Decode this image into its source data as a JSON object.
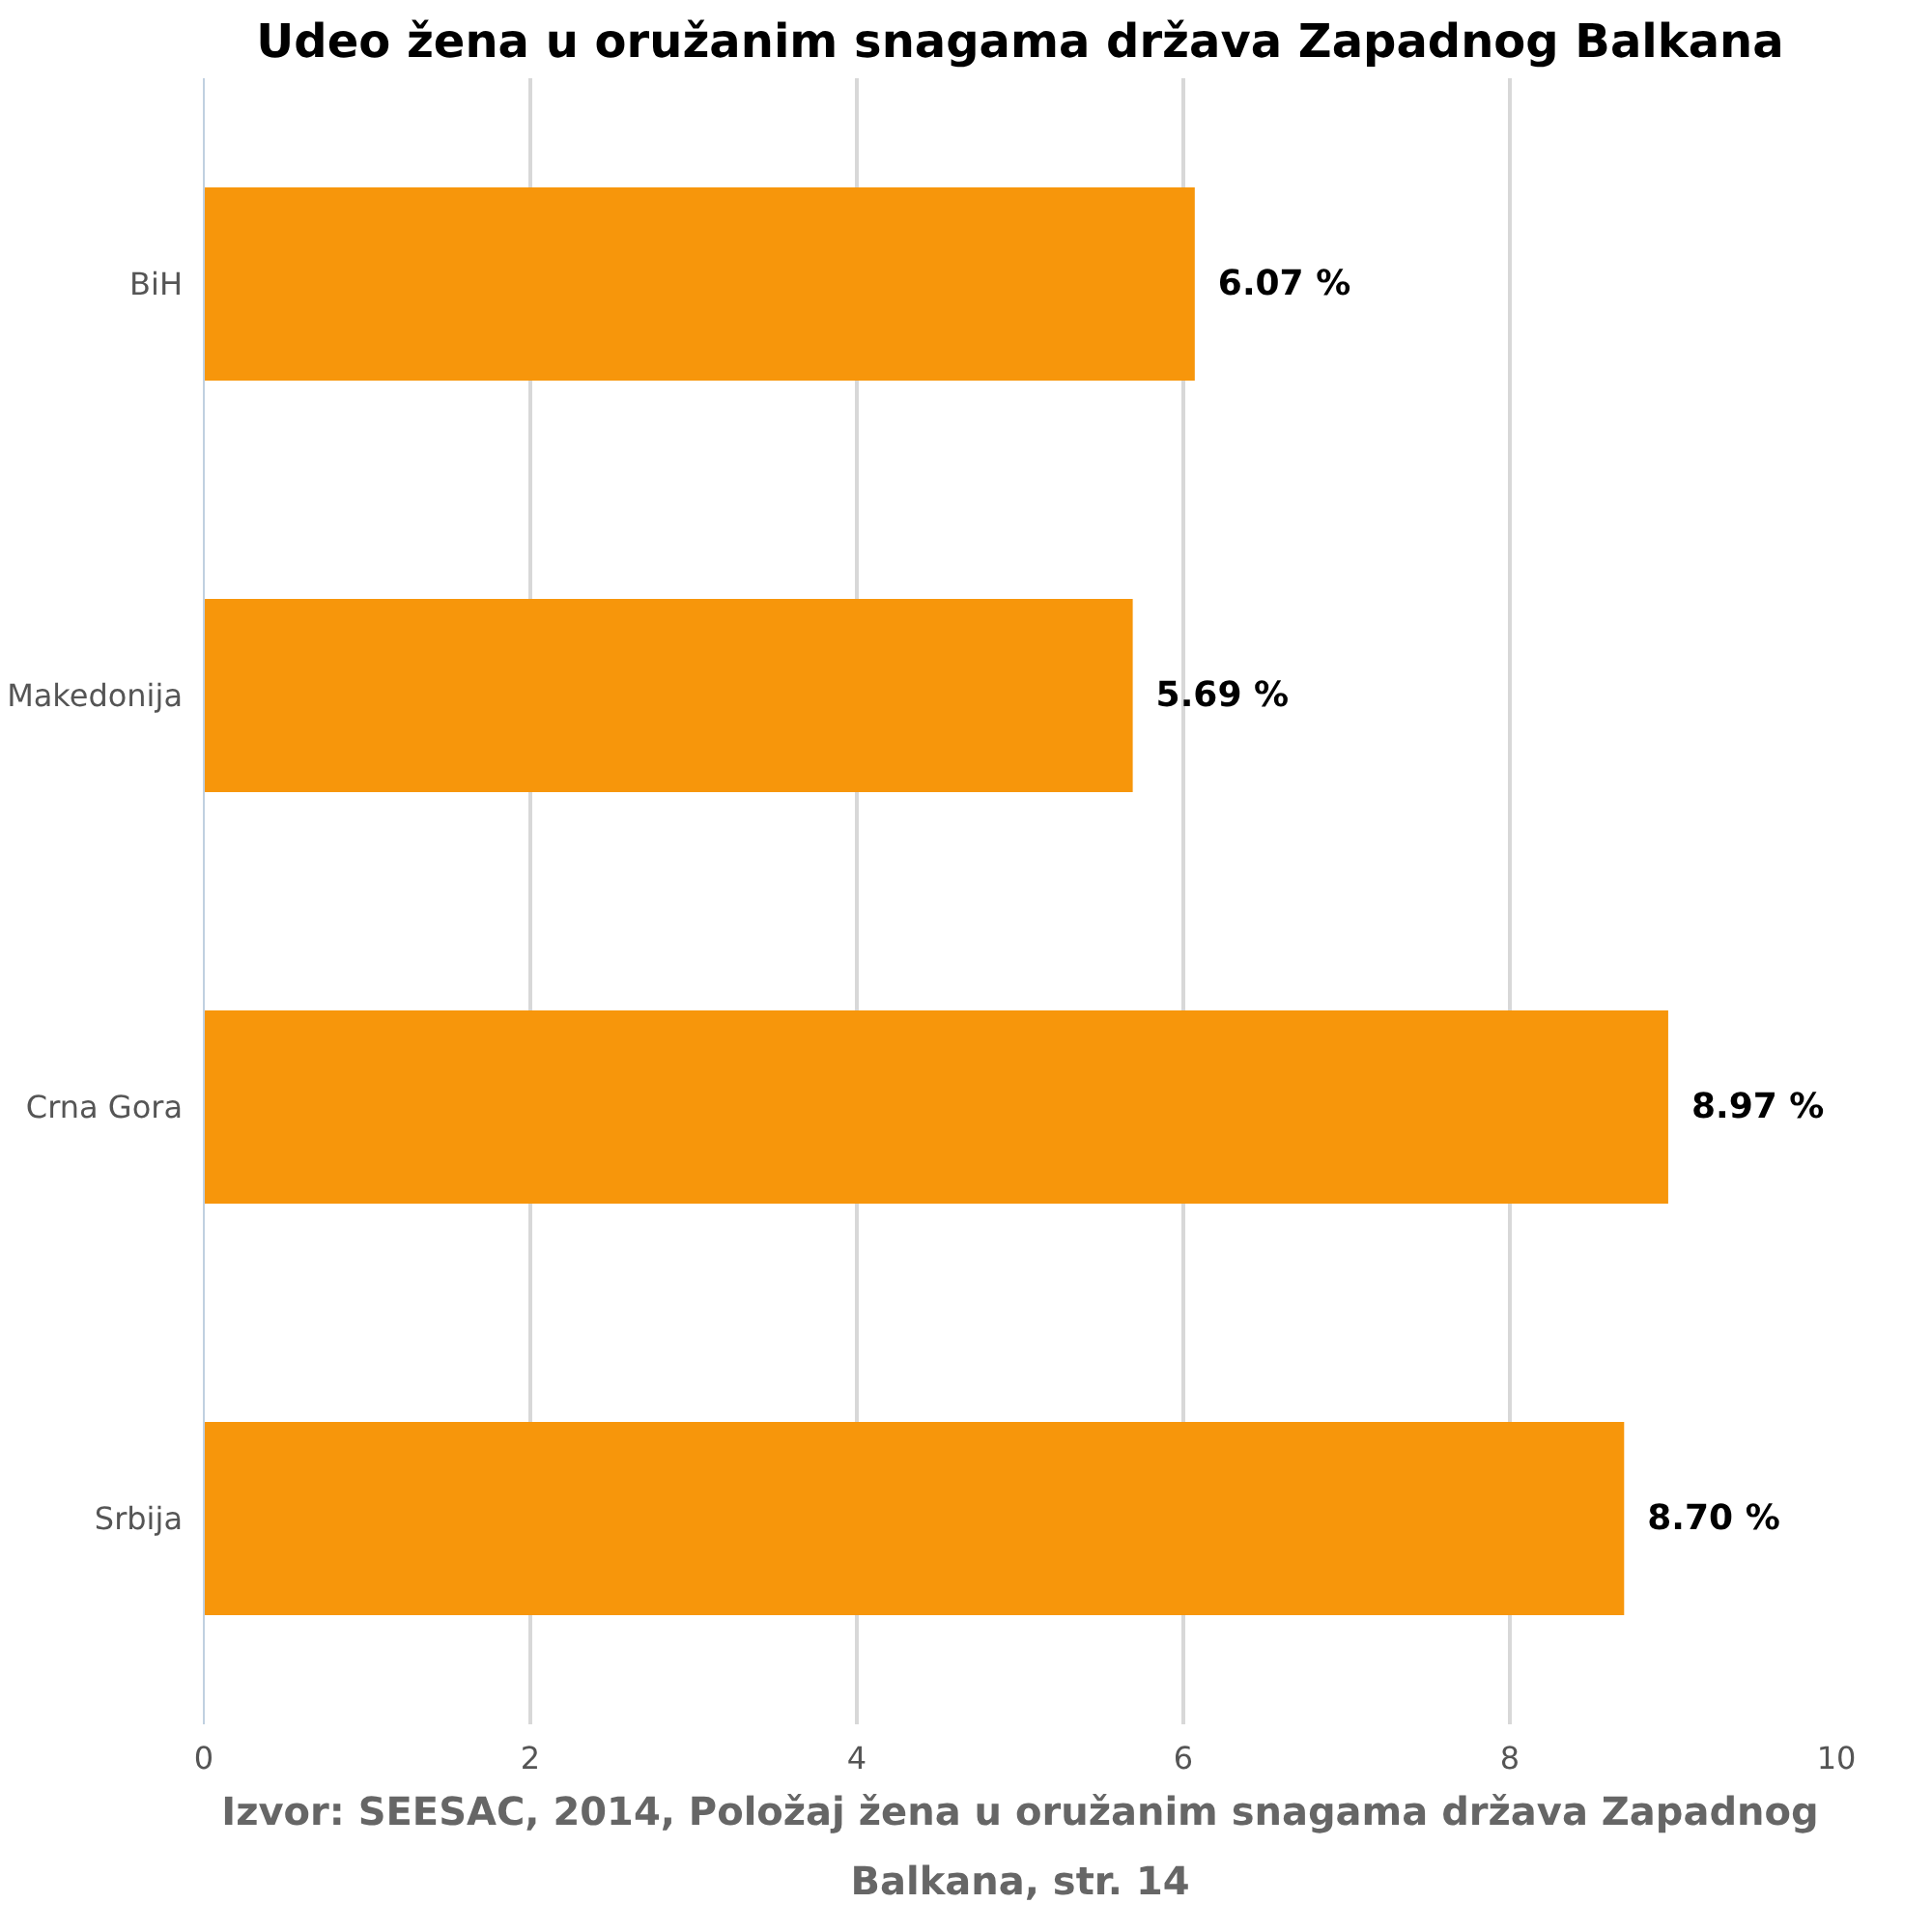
{
  "chart_data": {
    "type": "bar",
    "orientation": "horizontal",
    "title": "Udeo žena u oružanim snagama država Zapadnog Balkana",
    "categories": [
      "BiH",
      "Makedonija",
      "Crna Gora",
      "Srbija"
    ],
    "values": [
      6.07,
      5.69,
      8.97,
      8.7
    ],
    "value_labels": [
      "6.07 %",
      "5.69 %",
      "8.97 %",
      "8.70 %"
    ],
    "color": "#f7960b",
    "xlim": [
      0,
      10
    ],
    "xticks": [
      0,
      2,
      4,
      6,
      8,
      10
    ],
    "grid": "x",
    "annotations": [
      "Izvor: SEESAC, 2014, Položaj žena u oružanim snagama država Zapadnog Balkana, str. 14"
    ]
  }
}
